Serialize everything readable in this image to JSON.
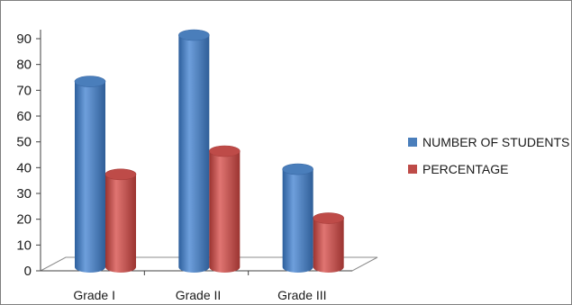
{
  "chart_data": {
    "type": "bar",
    "categories": [
      "Grade I",
      "Grade II",
      "Grade III"
    ],
    "series": [
      {
        "name": "NUMBER OF STUDENTS",
        "color": "#4a7ebb",
        "values": [
          72,
          90,
          38
        ]
      },
      {
        "name": "PERCENTAGE",
        "color": "#be4b48",
        "values": [
          36,
          45,
          19
        ]
      }
    ],
    "ylim": [
      0,
      90
    ],
    "yticks": [
      0,
      10,
      20,
      30,
      40,
      50,
      60,
      70,
      80,
      90
    ],
    "grid": false,
    "legend_position": "right",
    "style": "3d-cylinder"
  }
}
